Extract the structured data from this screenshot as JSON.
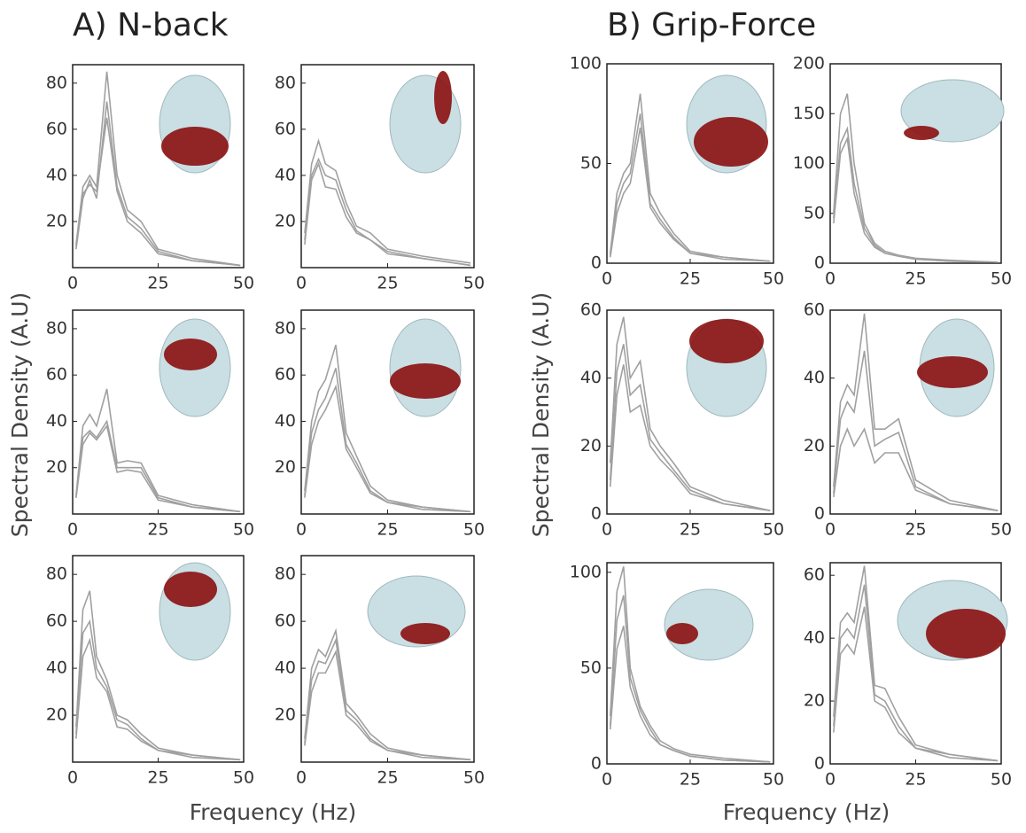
{
  "panels": [
    {
      "title": "A) N-back",
      "ylabel": "Spectral Density (A.U)",
      "xlabel": "Frequency (Hz)"
    },
    {
      "title": "B) Grip-Force",
      "ylabel": "Spectral Density (A.U)",
      "xlabel": "Frequency (Hz)"
    }
  ],
  "chart_data": [
    {
      "type": "line",
      "x": [
        1,
        3,
        5,
        7,
        10,
        13,
        16,
        20,
        25,
        35,
        49
      ],
      "xlim": [
        0,
        50
      ],
      "xticks": [
        0,
        25,
        50
      ],
      "ylim": [
        0,
        88
      ],
      "yticks": [
        20,
        40,
        60,
        80
      ],
      "series": [
        {
          "color": "#a0a0a0",
          "values": [
            10,
            35,
            40,
            35,
            85,
            40,
            25,
            20,
            8,
            4,
            1
          ]
        },
        {
          "color": "#a0a0a0",
          "values": [
            8,
            30,
            38,
            30,
            72,
            35,
            22,
            17,
            7,
            3,
            1
          ]
        },
        {
          "color": "#a0a0a0",
          "values": [
            9,
            32,
            36,
            33,
            65,
            33,
            20,
            15,
            6,
            3,
            1
          ]
        }
      ]
    },
    {
      "type": "line",
      "x": [
        1,
        3,
        5,
        7,
        10,
        13,
        16,
        20,
        25,
        35,
        49
      ],
      "xlim": [
        0,
        50
      ],
      "xticks": [
        0,
        25,
        50
      ],
      "ylim": [
        0,
        88
      ],
      "yticks": [
        20,
        40,
        60,
        80
      ],
      "series": [
        {
          "color": "#a0a0a0",
          "values": [
            15,
            45,
            55,
            45,
            42,
            28,
            18,
            15,
            8,
            5,
            2
          ]
        },
        {
          "color": "#a0a0a0",
          "values": [
            12,
            40,
            47,
            40,
            38,
            25,
            16,
            12,
            7,
            4,
            1
          ]
        },
        {
          "color": "#a0a0a0",
          "values": [
            10,
            38,
            45,
            35,
            34,
            22,
            15,
            12,
            6,
            4,
            1
          ]
        }
      ]
    },
    {
      "type": "line",
      "x": [
        1,
        3,
        5,
        7,
        10,
        13,
        16,
        20,
        25,
        35,
        49
      ],
      "xlim": [
        0,
        50
      ],
      "xticks": [
        0,
        25,
        50
      ],
      "ylim": [
        0,
        88
      ],
      "yticks": [
        20,
        40,
        60,
        80
      ],
      "series": [
        {
          "color": "#a0a0a0",
          "values": [
            8,
            38,
            43,
            38,
            54,
            22,
            23,
            22,
            8,
            4,
            1
          ]
        },
        {
          "color": "#a0a0a0",
          "values": [
            7,
            33,
            36,
            33,
            40,
            20,
            20,
            20,
            7,
            3,
            1
          ]
        },
        {
          "color": "#a0a0a0",
          "values": [
            7,
            30,
            35,
            32,
            38,
            18,
            19,
            18,
            6,
            3,
            1
          ]
        }
      ]
    },
    {
      "type": "line",
      "x": [
        1,
        3,
        5,
        7,
        10,
        13,
        16,
        20,
        25,
        35,
        49
      ],
      "xlim": [
        0,
        50
      ],
      "xticks": [
        0,
        25,
        50
      ],
      "ylim": [
        0,
        88
      ],
      "yticks": [
        20,
        40,
        60,
        80
      ],
      "series": [
        {
          "color": "#a0a0a0",
          "values": [
            10,
            40,
            53,
            58,
            73,
            35,
            25,
            12,
            6,
            3,
            1
          ]
        },
        {
          "color": "#a0a0a0",
          "values": [
            8,
            35,
            45,
            50,
            63,
            30,
            22,
            10,
            5,
            3,
            1
          ]
        },
        {
          "color": "#a0a0a0",
          "values": [
            7,
            30,
            40,
            45,
            55,
            28,
            20,
            9,
            5,
            2,
            1
          ]
        }
      ]
    },
    {
      "type": "line",
      "x": [
        1,
        3,
        5,
        7,
        10,
        13,
        16,
        20,
        25,
        35,
        49
      ],
      "xlim": [
        0,
        50
      ],
      "xticks": [
        0,
        25,
        50
      ],
      "ylim": [
        0,
        88
      ],
      "yticks": [
        20,
        40,
        60,
        80
      ],
      "series": [
        {
          "color": "#a0a0a0",
          "values": [
            15,
            65,
            73,
            45,
            35,
            20,
            18,
            12,
            6,
            3,
            1
          ]
        },
        {
          "color": "#a0a0a0",
          "values": [
            12,
            55,
            60,
            40,
            32,
            18,
            16,
            10,
            5,
            3,
            1
          ]
        },
        {
          "color": "#a0a0a0",
          "values": [
            10,
            45,
            52,
            36,
            30,
            15,
            14,
            9,
            5,
            2,
            1
          ]
        }
      ]
    },
    {
      "type": "line",
      "x": [
        1,
        3,
        5,
        7,
        10,
        13,
        16,
        20,
        25,
        35,
        49
      ],
      "xlim": [
        0,
        50
      ],
      "xticks": [
        0,
        25,
        50
      ],
      "ylim": [
        0,
        88
      ],
      "yticks": [
        20,
        40,
        60,
        80
      ],
      "series": [
        {
          "color": "#a0a0a0",
          "values": [
            10,
            40,
            48,
            45,
            56,
            25,
            20,
            12,
            6,
            3,
            1
          ]
        },
        {
          "color": "#a0a0a0",
          "values": [
            8,
            35,
            43,
            42,
            52,
            22,
            18,
            10,
            5,
            3,
            1
          ]
        },
        {
          "color": "#a0a0a0",
          "values": [
            7,
            30,
            38,
            38,
            47,
            20,
            16,
            9,
            5,
            2,
            1
          ]
        }
      ]
    },
    {
      "type": "line",
      "x": [
        1,
        3,
        5,
        7,
        10,
        13,
        16,
        20,
        25,
        35,
        49
      ],
      "xlim": [
        0,
        50
      ],
      "xticks": [
        0,
        25,
        50
      ],
      "ylim": [
        0,
        100
      ],
      "yticks": [
        0,
        50,
        100
      ],
      "series": [
        {
          "color": "#a0a0a0",
          "values": [
            5,
            35,
            45,
            50,
            85,
            35,
            25,
            15,
            6,
            3,
            1
          ]
        },
        {
          "color": "#a0a0a0",
          "values": [
            4,
            30,
            40,
            45,
            75,
            30,
            22,
            13,
            5,
            3,
            1
          ]
        },
        {
          "color": "#a0a0a0",
          "values": [
            3,
            25,
            35,
            40,
            68,
            28,
            20,
            12,
            5,
            2,
            1
          ]
        }
      ]
    },
    {
      "type": "line",
      "x": [
        1,
        3,
        5,
        7,
        10,
        13,
        16,
        20,
        25,
        35,
        49
      ],
      "xlim": [
        0,
        50
      ],
      "xticks": [
        0,
        25,
        50
      ],
      "ylim": [
        0,
        200
      ],
      "yticks": [
        0,
        50,
        100,
        150,
        200
      ],
      "series": [
        {
          "color": "#a0a0a0",
          "values": [
            50,
            150,
            170,
            100,
            40,
            20,
            12,
            8,
            5,
            3,
            1
          ]
        },
        {
          "color": "#a0a0a0",
          "values": [
            45,
            120,
            135,
            80,
            35,
            18,
            10,
            7,
            4,
            2,
            1
          ]
        },
        {
          "color": "#a0a0a0",
          "values": [
            40,
            110,
            125,
            70,
            30,
            16,
            10,
            7,
            4,
            2,
            1
          ]
        }
      ]
    },
    {
      "type": "line",
      "x": [
        1,
        3,
        5,
        7,
        10,
        13,
        16,
        20,
        25,
        35,
        49
      ],
      "xlim": [
        0,
        50
      ],
      "xticks": [
        0,
        25,
        50
      ],
      "ylim": [
        0,
        60
      ],
      "yticks": [
        0,
        20,
        40,
        60
      ],
      "series": [
        {
          "color": "#a0a0a0",
          "values": [
            15,
            50,
            58,
            40,
            45,
            25,
            20,
            15,
            8,
            4,
            1
          ]
        },
        {
          "color": "#a0a0a0",
          "values": [
            10,
            42,
            50,
            35,
            38,
            22,
            18,
            13,
            7,
            3,
            1
          ]
        },
        {
          "color": "#a0a0a0",
          "values": [
            8,
            35,
            44,
            30,
            32,
            20,
            16,
            12,
            6,
            3,
            1
          ]
        }
      ]
    },
    {
      "type": "line",
      "x": [
        1,
        3,
        5,
        7,
        10,
        13,
        16,
        20,
        25,
        35,
        49
      ],
      "xlim": [
        0,
        50
      ],
      "xticks": [
        0,
        25,
        50
      ],
      "ylim": [
        0,
        60
      ],
      "yticks": [
        0,
        20,
        40,
        60
      ],
      "series": [
        {
          "color": "#a0a0a0",
          "values": [
            8,
            33,
            38,
            35,
            59,
            25,
            25,
            28,
            10,
            4,
            1
          ]
        },
        {
          "color": "#a0a0a0",
          "values": [
            6,
            28,
            33,
            30,
            48,
            20,
            22,
            24,
            8,
            3,
            1
          ]
        },
        {
          "color": "#a0a0a0",
          "values": [
            5,
            20,
            25,
            20,
            25,
            15,
            18,
            18,
            7,
            3,
            1
          ]
        }
      ]
    },
    {
      "type": "line",
      "x": [
        1,
        3,
        5,
        7,
        10,
        13,
        16,
        20,
        25,
        35,
        49
      ],
      "xlim": [
        0,
        50
      ],
      "xticks": [
        0,
        25,
        50
      ],
      "ylim": [
        0,
        105
      ],
      "yticks": [
        0,
        50,
        100
      ],
      "series": [
        {
          "color": "#a0a0a0",
          "values": [
            25,
            90,
            103,
            50,
            30,
            20,
            12,
            8,
            5,
            3,
            1
          ]
        },
        {
          "color": "#a0a0a0",
          "values": [
            20,
            75,
            88,
            45,
            28,
            18,
            10,
            7,
            4,
            2,
            1
          ]
        },
        {
          "color": "#a0a0a0",
          "values": [
            18,
            60,
            72,
            40,
            25,
            15,
            10,
            7,
            4,
            2,
            1
          ]
        }
      ]
    },
    {
      "type": "line",
      "x": [
        1,
        3,
        5,
        7,
        10,
        13,
        16,
        20,
        25,
        35,
        49
      ],
      "xlim": [
        0,
        50
      ],
      "xticks": [
        0,
        25,
        50
      ],
      "ylim": [
        0,
        64
      ],
      "yticks": [
        0,
        20,
        40,
        60
      ],
      "series": [
        {
          "color": "#a0a0a0",
          "values": [
            15,
            45,
            48,
            45,
            63,
            25,
            24,
            15,
            6,
            3,
            1
          ]
        },
        {
          "color": "#a0a0a0",
          "values": [
            12,
            40,
            43,
            40,
            57,
            22,
            20,
            12,
            5,
            3,
            1
          ]
        },
        {
          "color": "#a0a0a0",
          "values": [
            10,
            35,
            38,
            35,
            50,
            20,
            18,
            10,
            5,
            2,
            1
          ]
        }
      ]
    }
  ]
}
